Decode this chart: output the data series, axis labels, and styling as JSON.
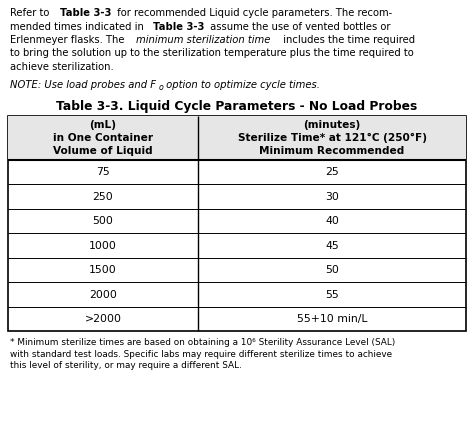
{
  "table_title": "Table 3-3. Liquid Cycle Parameters - No Load Probes",
  "col1_header_lines": [
    "Volume of Liquid",
    "in One Container",
    "(mL)"
  ],
  "col2_header_lines": [
    "Minimum Recommended",
    "Sterilize Time* at 121°C (250°F)",
    "(minutes)"
  ],
  "rows": [
    [
      "75",
      "25"
    ],
    [
      "250",
      "30"
    ],
    [
      "500",
      "40"
    ],
    [
      "1000",
      "45"
    ],
    [
      "1500",
      "50"
    ],
    [
      "2000",
      "55"
    ],
    [
      ">2000",
      "55+10 min/L"
    ]
  ],
  "footnote_lines": [
    "* Minimum sterilize times are based on obtaining a 10⁶ Sterility Assurance Level (SAL)",
    "with standard test loads. Specific labs may require different sterilize times to achieve",
    "this level of sterility, or may require a different SAL."
  ],
  "bg_color": "#ffffff",
  "text_color": "#000000",
  "border_color": "#000000",
  "header_bg": "#e0e0e0"
}
